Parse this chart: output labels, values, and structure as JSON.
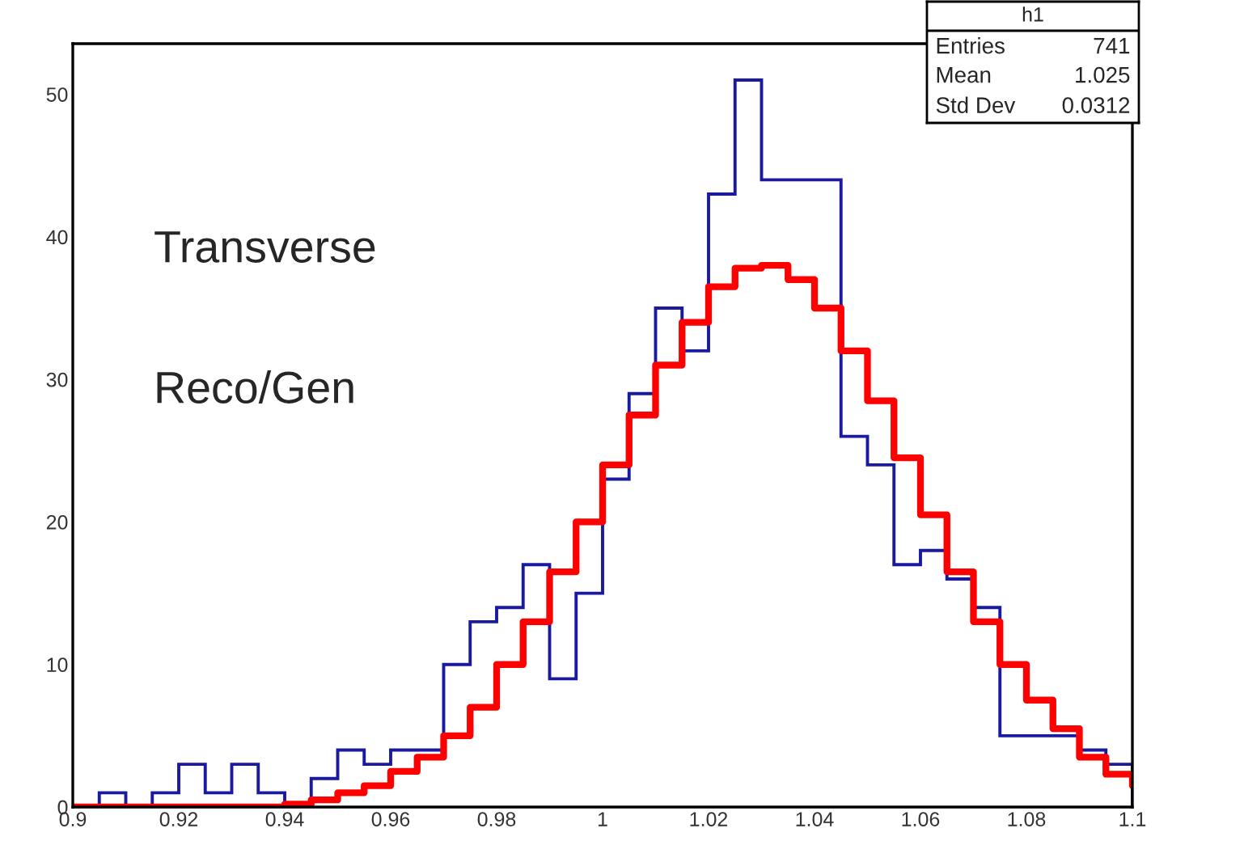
{
  "chart_data": {
    "type": "histogram",
    "bins": [
      0.9,
      0.905,
      0.91,
      0.915,
      0.92,
      0.925,
      0.93,
      0.935,
      0.94,
      0.945,
      0.95,
      0.955,
      0.96,
      0.965,
      0.97,
      0.975,
      0.98,
      0.985,
      0.99,
      0.995,
      1.0,
      1.005,
      1.01,
      1.015,
      1.02,
      1.025,
      1.03,
      1.035,
      1.04,
      1.045,
      1.05,
      1.055,
      1.06,
      1.065,
      1.07,
      1.075,
      1.08,
      1.085,
      1.09,
      1.095,
      1.1
    ],
    "values": [
      0,
      1,
      0,
      1,
      3,
      1,
      3,
      1,
      0,
      2,
      4,
      3,
      4,
      4,
      10,
      13,
      14,
      17,
      9,
      15,
      23,
      29,
      35,
      32,
      43,
      51,
      44,
      44,
      44,
      26,
      24,
      17,
      18,
      16,
      14,
      5,
      5,
      5,
      4,
      3
    ],
    "color": "#1a1aa0",
    "series": [
      {
        "type": "step",
        "color": "#ff0000",
        "x": [
          0.9,
          0.935,
          0.94,
          0.945,
          0.95,
          0.955,
          0.96,
          0.965,
          0.97,
          0.975,
          0.98,
          0.985,
          0.99,
          0.995,
          1.0,
          1.005,
          1.01,
          1.015,
          1.02,
          1.025,
          1.03,
          1.035,
          1.04,
          1.045,
          1.05,
          1.055,
          1.06,
          1.065,
          1.07,
          1.075,
          1.08,
          1.085,
          1.09,
          1.095,
          1.1
        ],
        "values": [
          0,
          0,
          0.2,
          0.5,
          1,
          1.5,
          2.5,
          3.5,
          5,
          7,
          10,
          13,
          16.5,
          20,
          24,
          27.5,
          31,
          34,
          36.5,
          37.8,
          38,
          37,
          35,
          32,
          28.5,
          24.5,
          20.5,
          16.5,
          13,
          10,
          7.5,
          5.5,
          3.5,
          2.3,
          1.5
        ]
      }
    ],
    "xlim": [
      0.9,
      1.1
    ],
    "ylim": [
      0,
      53.55
    ],
    "xticks": [
      0.9,
      0.92,
      0.94,
      0.96,
      0.98,
      1,
      1.02,
      1.04,
      1.06,
      1.08,
      1.1
    ],
    "yticks": [
      0,
      10,
      20,
      30,
      40,
      50
    ],
    "grid": false,
    "annotations": [
      "Transverse",
      "Reco/Gen",
      "h1",
      "Entries",
      "741",
      "Mean",
      "1.025",
      "Std Dev",
      "0.0312"
    ]
  }
}
